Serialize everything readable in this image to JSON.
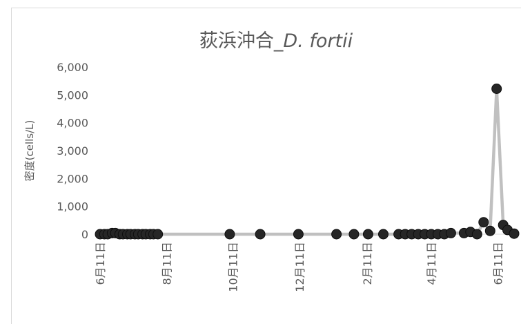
{
  "chart_data": {
    "type": "line",
    "title": "荻浜沖合_",
    "title_species": "D. fortii",
    "ylabel": "密度(cells/L)",
    "xlabel": "",
    "ylim": [
      0,
      6000
    ],
    "yticks": [
      0,
      1000,
      2000,
      3000,
      4000,
      5000,
      6000
    ],
    "ytick_labels": [
      "0",
      "1,000",
      "2,000",
      "3,000",
      "4,000",
      "5,000",
      "6,000"
    ],
    "x_start": "2022-06-11",
    "x_end": "2023-06-26",
    "xticks": [
      {
        "date": "2022-06-11",
        "label": "6月11日"
      },
      {
        "date": "2022-08-11",
        "label": "8月11日"
      },
      {
        "date": "2022-10-11",
        "label": "10月11日"
      },
      {
        "date": "2022-12-11",
        "label": "12月11日"
      },
      {
        "date": "2023-02-11",
        "label": "2月11日"
      },
      {
        "date": "2023-04-11",
        "label": "4月11日"
      },
      {
        "date": "2023-06-11",
        "label": "6月11日"
      }
    ],
    "grid": false,
    "legend": "none",
    "colors": {
      "line": "#c0c0c0",
      "marker": "#262626",
      "text": "#595959"
    },
    "series": [
      {
        "x": [
          "2022-06-11",
          "2022-06-15",
          "2022-06-18",
          "2022-06-22",
          "2022-06-25",
          "2022-06-29",
          "2022-07-02",
          "2022-07-06",
          "2022-07-09",
          "2022-07-13",
          "2022-07-16",
          "2022-07-20",
          "2022-07-23",
          "2022-07-27",
          "2022-07-30",
          "2022-08-03",
          "2022-10-08",
          "2022-11-05",
          "2022-12-10",
          "2023-01-14",
          "2023-01-30",
          "2023-02-12",
          "2023-02-26",
          "2023-03-12",
          "2023-03-18",
          "2023-03-24",
          "2023-03-30",
          "2023-04-05",
          "2023-04-11",
          "2023-04-17",
          "2023-04-23",
          "2023-04-29",
          "2023-05-11",
          "2023-05-17",
          "2023-05-23",
          "2023-05-29",
          "2023-06-04",
          "2023-06-10",
          "2023-06-16",
          "2023-06-20",
          "2023-06-26"
        ],
        "y": [
          0,
          0,
          0,
          40,
          40,
          0,
          0,
          0,
          0,
          0,
          0,
          0,
          0,
          0,
          0,
          0,
          0,
          0,
          0,
          0,
          0,
          0,
          0,
          0,
          0,
          0,
          0,
          0,
          0,
          0,
          0,
          40,
          40,
          80,
          0,
          430,
          120,
          5220,
          330,
          150,
          20
        ]
      }
    ]
  }
}
